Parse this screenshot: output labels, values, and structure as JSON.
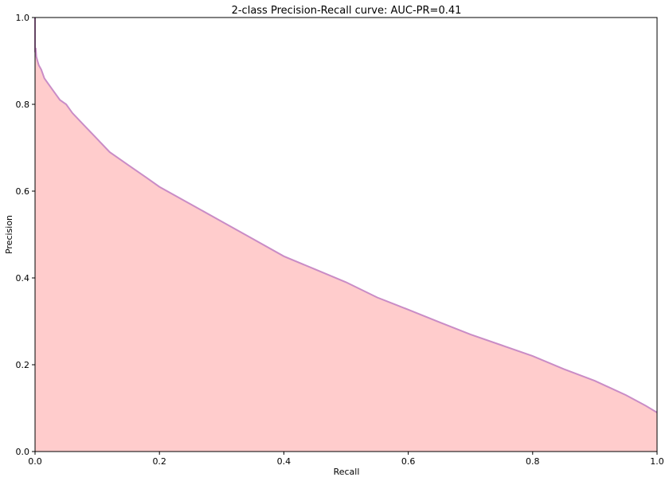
{
  "chart_data": {
    "type": "area",
    "title": "2-class Precision-Recall curve: AUC-PR=0.41",
    "xlabel": "Recall",
    "ylabel": "Precision",
    "xlim": [
      0,
      1
    ],
    "ylim": [
      0,
      1
    ],
    "xticks": [
      "0.0",
      "0.2",
      "0.4",
      "0.6",
      "0.8",
      "1.0"
    ],
    "yticks": [
      "0.0",
      "0.2",
      "0.4",
      "0.6",
      "0.8",
      "1.0"
    ],
    "grid": false,
    "legend": "none",
    "colors": {
      "fill": "#ffcccc",
      "line": "#c98cc6"
    },
    "series": [
      {
        "x": [
          0.0,
          0.0,
          0.001,
          0.002,
          0.004,
          0.006,
          0.01,
          0.015,
          0.02,
          0.03,
          0.04,
          0.05,
          0.06,
          0.08,
          0.1,
          0.12,
          0.15,
          0.18,
          0.2,
          0.25,
          0.3,
          0.35,
          0.4,
          0.45,
          0.5,
          0.55,
          0.6,
          0.65,
          0.7,
          0.75,
          0.8,
          0.85,
          0.9,
          0.95,
          0.98,
          1.0
        ],
        "y": [
          1.0,
          0.92,
          0.93,
          0.91,
          0.9,
          0.89,
          0.88,
          0.86,
          0.85,
          0.83,
          0.81,
          0.8,
          0.78,
          0.75,
          0.72,
          0.69,
          0.66,
          0.63,
          0.61,
          0.57,
          0.53,
          0.49,
          0.45,
          0.42,
          0.39,
          0.355,
          0.327,
          0.298,
          0.27,
          0.245,
          0.22,
          0.19,
          0.163,
          0.13,
          0.107,
          0.09
        ]
      }
    ]
  }
}
